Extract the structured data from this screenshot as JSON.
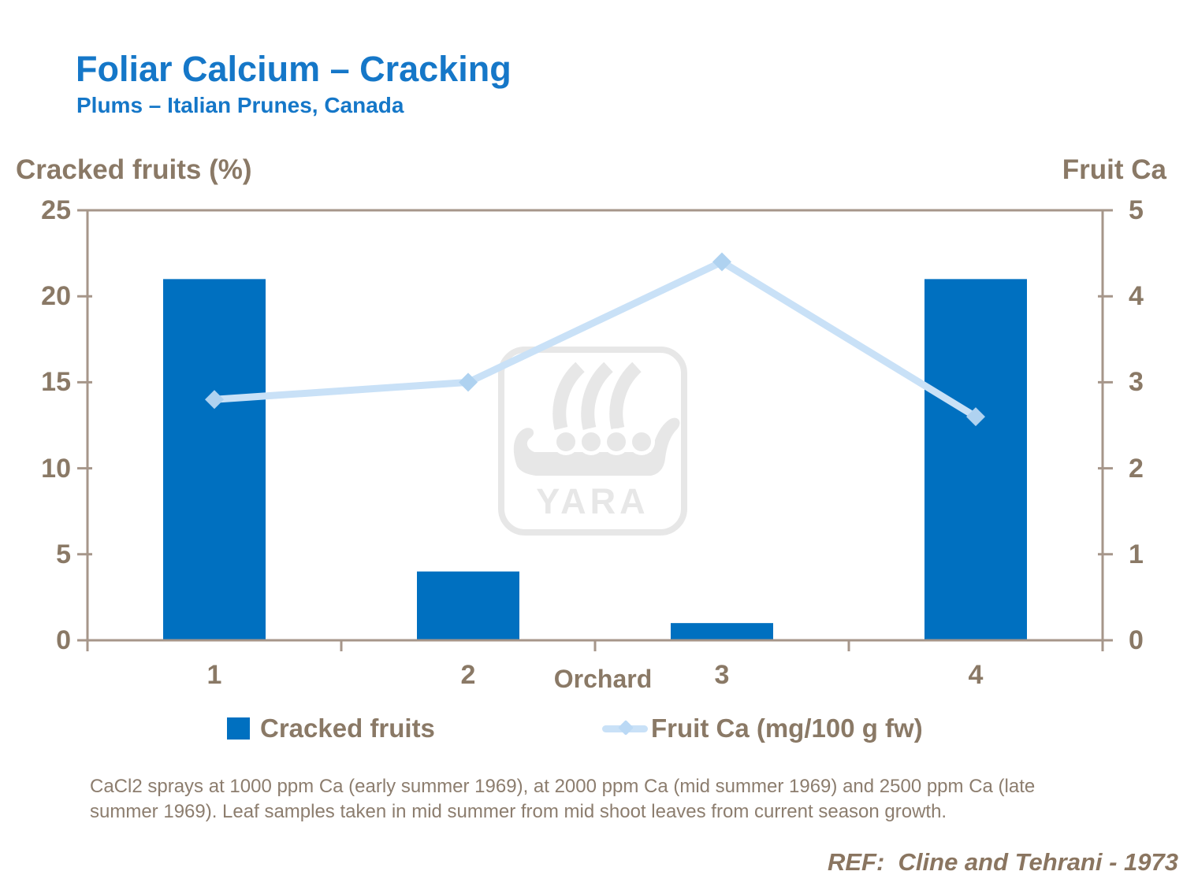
{
  "slide": {
    "title": "Foliar Calcium – Cracking",
    "subtitle": "Plums – Italian Prunes, Canada",
    "footnote_line1": "CaCl2 sprays at 1000 ppm Ca (early summer 1969), at 2000 ppm Ca (mid summer 1969) and 2500 ppm Ca (late",
    "footnote_line2": "summer 1969). Leaf samples taken in mid summer from mid shoot leaves from current season growth.",
    "reference": "REF:  Cline and Tehrani - 1973",
    "watermark_text": "YARA"
  },
  "chart_data": {
    "type": "bar",
    "subtype": "bar-and-line-combo",
    "categories": [
      "1",
      "2",
      "3",
      "4"
    ],
    "x_axis_label": "Orchard",
    "left_axis": {
      "title": "Cracked fruits (%)",
      "ticks": [
        0,
        5,
        10,
        15,
        20,
        25
      ],
      "range": [
        0,
        25
      ]
    },
    "right_axis": {
      "title": "Fruit Ca",
      "ticks": [
        0,
        1,
        2,
        3,
        4,
        5
      ],
      "range": [
        0,
        5
      ]
    },
    "series": [
      {
        "name": "Cracked fruits",
        "type": "bar",
        "axis": "left",
        "values": [
          21,
          4,
          1,
          21
        ]
      },
      {
        "name": "Fruit Ca (mg/100 g fw)",
        "type": "line",
        "axis": "right",
        "values": [
          2.8,
          3.0,
          4.4,
          2.6
        ]
      }
    ],
    "legend": [
      {
        "label": "Cracked fruits",
        "marker": "square"
      },
      {
        "label": "Fruit Ca (mg/100 g fw)",
        "marker": "line"
      }
    ],
    "grid": false,
    "legend_position": "bottom"
  },
  "colors": {
    "title_blue": "#1577C8",
    "bar_blue": "#0070C0",
    "line_light_blue": "#C9E1F7",
    "line_marker_blue": "#AFD2F0",
    "axis_frame_brown": "#A6968A",
    "label_brown": "#8A7966",
    "footnote_brown": "#8C7D6E",
    "reference_brown": "#8A7560",
    "watermark_gray": "#E7E7E7",
    "background": "#FFFFFF"
  }
}
